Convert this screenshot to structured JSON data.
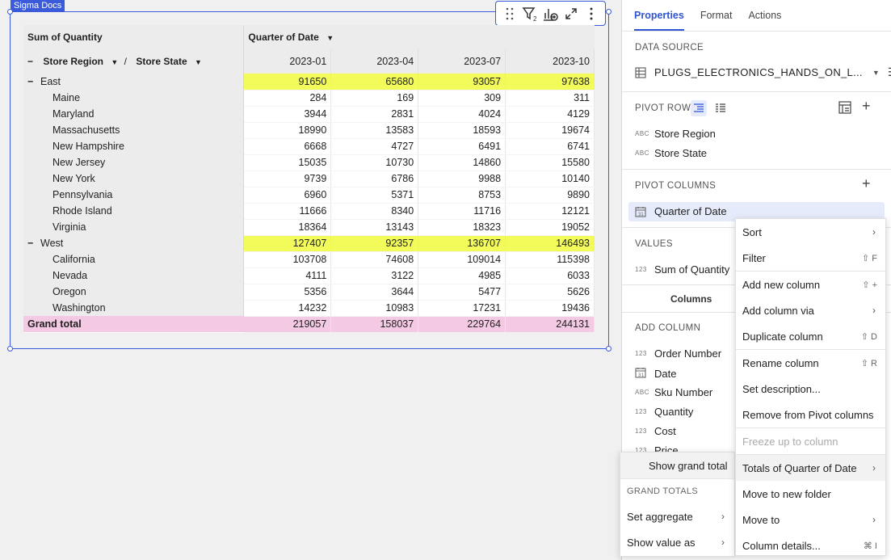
{
  "canvas": {
    "element_tag": "Sigma Docs"
  },
  "pivot": {
    "value_header": "Sum of Quantity",
    "column_header": "Quarter of Date",
    "row_header_1": "Store Region",
    "row_header_sep": "/",
    "row_header_2": "Store State",
    "dates": [
      "2023-01",
      "2023-04",
      "2023-07",
      "2023-10"
    ],
    "regions": [
      {
        "name": "East",
        "totals": [
          "91650",
          "65680",
          "93057",
          "97638"
        ],
        "states": [
          {
            "name": "Maine",
            "values": [
              "284",
              "169",
              "309",
              "311"
            ]
          },
          {
            "name": "Maryland",
            "values": [
              "3944",
              "2831",
              "4024",
              "4129"
            ]
          },
          {
            "name": "Massachusetts",
            "values": [
              "18990",
              "13583",
              "18593",
              "19674"
            ]
          },
          {
            "name": "New Hampshire",
            "values": [
              "6668",
              "4727",
              "6491",
              "6741"
            ]
          },
          {
            "name": "New Jersey",
            "values": [
              "15035",
              "10730",
              "14860",
              "15580"
            ]
          },
          {
            "name": "New York",
            "values": [
              "9739",
              "6786",
              "9988",
              "10140"
            ]
          },
          {
            "name": "Pennsylvania",
            "values": [
              "6960",
              "5371",
              "8753",
              "9890"
            ]
          },
          {
            "name": "Rhode Island",
            "values": [
              "11666",
              "8340",
              "11716",
              "12121"
            ]
          },
          {
            "name": "Virginia",
            "values": [
              "18364",
              "13143",
              "18323",
              "19052"
            ]
          }
        ]
      },
      {
        "name": "West",
        "totals": [
          "127407",
          "92357",
          "136707",
          "146493"
        ],
        "states": [
          {
            "name": "California",
            "values": [
              "103708",
              "74608",
              "109014",
              "115398"
            ]
          },
          {
            "name": "Nevada",
            "values": [
              "4111",
              "3122",
              "4985",
              "6033"
            ]
          },
          {
            "name": "Oregon",
            "values": [
              "5356",
              "3644",
              "5477",
              "5626"
            ]
          },
          {
            "name": "Washington",
            "values": [
              "14232",
              "10983",
              "17231",
              "19436"
            ]
          }
        ]
      }
    ],
    "grand_total": {
      "label": "Grand total",
      "values": [
        "219057",
        "158037",
        "229764",
        "244131"
      ]
    }
  },
  "panel": {
    "tabs": [
      "Properties",
      "Format",
      "Actions"
    ],
    "data_source_title": "DATA SOURCE",
    "data_source_name": "PLUGS_ELECTRONICS_HANDS_ON_L...",
    "pivot_rows_title": "PIVOT ROWS",
    "pivot_rows": [
      "Store Region",
      "Store State"
    ],
    "pivot_columns_title": "PIVOT COLUMNS",
    "pivot_column": "Quarter of Date",
    "values_title": "VALUES",
    "value_item": "Sum of Quantity",
    "columns_label": "Columns",
    "add_column_title": "ADD COLUMN",
    "add_columns": [
      {
        "type": "123",
        "name": "Order Number"
      },
      {
        "type": "cal",
        "name": "Date"
      },
      {
        "type": "ABC",
        "name": "Sku Number"
      },
      {
        "type": "123",
        "name": "Quantity"
      },
      {
        "type": "123",
        "name": "Cost"
      },
      {
        "type": "123",
        "name": "Price"
      }
    ],
    "type_labels": {
      "abc": "ABC",
      "num": "123"
    }
  },
  "context_menu": {
    "items": [
      {
        "label": "Sort",
        "shortcut": "",
        "submenu": true
      },
      {
        "label": "Filter",
        "shortcut": "⇧ F",
        "submenu": false
      },
      {
        "label": "Add new column",
        "shortcut": "⇧ +",
        "submenu": false
      },
      {
        "label": "Add column via",
        "shortcut": "",
        "submenu": true
      },
      {
        "label": "Duplicate column",
        "shortcut": "⇧ D",
        "submenu": false
      },
      {
        "label": "Rename column",
        "shortcut": "⇧ R",
        "submenu": false
      },
      {
        "label": "Set description...",
        "shortcut": "",
        "submenu": false
      },
      {
        "label": "Remove from Pivot columns",
        "shortcut": "",
        "submenu": false
      },
      {
        "label": "Freeze up to column",
        "shortcut": "",
        "submenu": false
      },
      {
        "label": "Totals of Quarter of Date",
        "shortcut": "",
        "submenu": true
      },
      {
        "label": "Move to new folder",
        "shortcut": "",
        "submenu": false
      },
      {
        "label": "Move to",
        "shortcut": "",
        "submenu": true
      },
      {
        "label": "Column details...",
        "shortcut": "⌘ I",
        "submenu": false
      }
    ]
  },
  "submenu": {
    "show_grand_total": "Show grand total",
    "grand_totals_title": "GRAND TOTALS",
    "set_aggregate": "Set aggregate",
    "show_value_as": "Show value as"
  },
  "colors": {
    "accent": "#2f55d4",
    "subtotal_bg": "#f3fb5a",
    "grand_total_bg": "#f4c9e3",
    "selection": "#3b5bdb"
  },
  "arrow_glyph": "›"
}
